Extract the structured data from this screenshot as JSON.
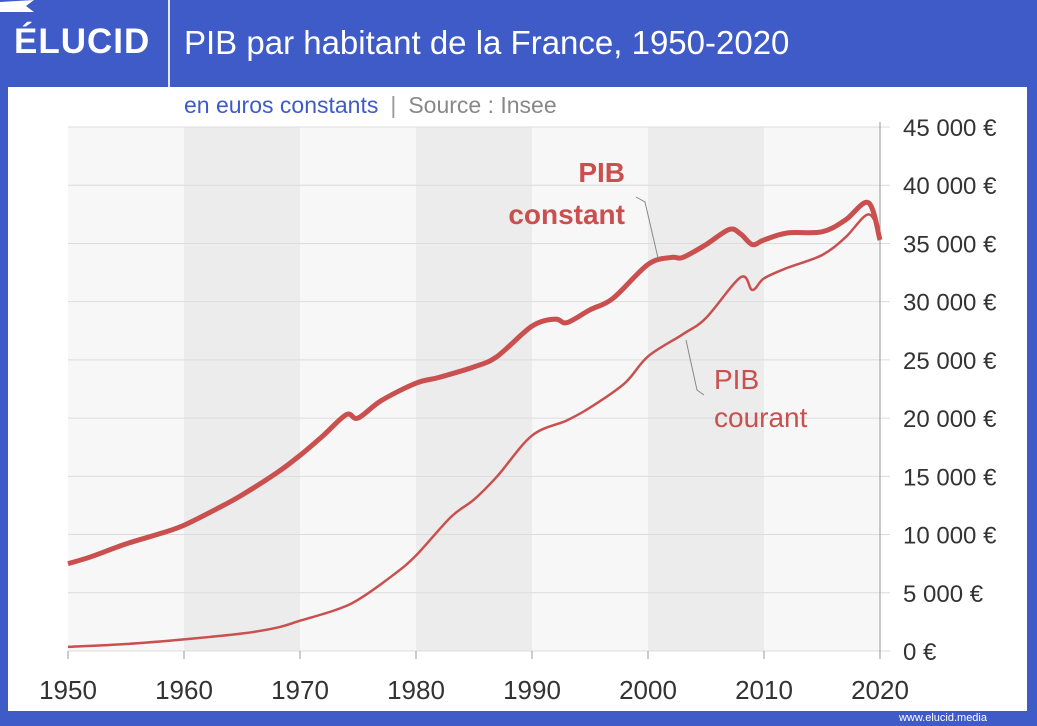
{
  "header": {
    "logo": "ÉLUCID",
    "title": "PIB par habitant de la France, 1950-2020"
  },
  "subtitle": {
    "unit": "en euros constants",
    "separator": "|",
    "source": "Source : Insee"
  },
  "footer": {
    "url": "www.elucid.media"
  },
  "colors": {
    "brand": "#3f5bc8",
    "series": "#c9504f",
    "band": "#ececec",
    "plot_bg": "#f7f7f7"
  },
  "chart_data": {
    "type": "line",
    "title": "PIB par habitant de la France, 1950-2020",
    "xlim": [
      1950,
      2020
    ],
    "ylim": [
      0,
      45000
    ],
    "x_ticks": [
      "1950",
      "1960",
      "1970",
      "1980",
      "1990",
      "2000",
      "2010",
      "2020"
    ],
    "y_ticks": [
      "0 €",
      "5 000 €",
      "10 000 €",
      "15 000 €",
      "20 000 €",
      "25 000 €",
      "30 000 €",
      "35 000 €",
      "40 000 €",
      "45 000 €"
    ],
    "y_axis_position": "right",
    "grid": true,
    "series": [
      {
        "name": "PIB constant",
        "label_lines": [
          "PIB",
          "constant"
        ],
        "x": [
          1950,
          1952,
          1955,
          1958,
          1960,
          1963,
          1965,
          1968,
          1970,
          1972,
          1974,
          1975,
          1977,
          1980,
          1982,
          1985,
          1987,
          1990,
          1992,
          1993,
          1995,
          1997,
          2000,
          2002,
          2003,
          2005,
          2007,
          2008,
          2009,
          2010,
          2012,
          2015,
          2017,
          2019,
          2020
        ],
        "y": [
          7500,
          8100,
          9200,
          10100,
          10800,
          12300,
          13400,
          15300,
          16800,
          18500,
          20300,
          20000,
          21500,
          23000,
          23500,
          24400,
          25300,
          27900,
          28500,
          28200,
          29300,
          30300,
          33200,
          33800,
          33800,
          34900,
          36200,
          35800,
          34900,
          35300,
          35900,
          36000,
          37000,
          38500,
          35300
        ]
      },
      {
        "name": "PIB courant",
        "label_lines": [
          "PIB",
          "courant"
        ],
        "x": [
          1950,
          1955,
          1960,
          1965,
          1968,
          1970,
          1973,
          1975,
          1978,
          1980,
          1983,
          1985,
          1987,
          1990,
          1993,
          1995,
          1998,
          2000,
          2003,
          2005,
          2008,
          2009,
          2010,
          2012,
          2015,
          2017,
          2019,
          2020
        ],
        "y": [
          350,
          600,
          1000,
          1500,
          2000,
          2600,
          3500,
          4400,
          6500,
          8200,
          11500,
          13000,
          15000,
          18500,
          19800,
          20900,
          23000,
          25300,
          27200,
          28600,
          32100,
          31000,
          32000,
          32900,
          34000,
          35500,
          37500,
          35800
        ]
      }
    ]
  }
}
